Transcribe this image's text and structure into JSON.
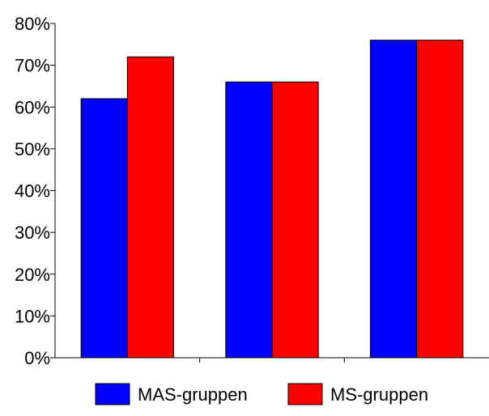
{
  "chart_data": {
    "type": "bar",
    "title": "",
    "xlabel": "",
    "ylabel": "",
    "categories": [
      "",
      "",
      ""
    ],
    "series": [
      {
        "name": "MAS-gruppen",
        "color": "#0000FF",
        "values": [
          62,
          66,
          76
        ]
      },
      {
        "name": "MS-gruppen",
        "color": "#FF0000",
        "values": [
          72,
          66,
          76
        ]
      }
    ],
    "ylim": [
      0,
      80
    ],
    "yticks": [
      0,
      10,
      20,
      30,
      40,
      50,
      60,
      70,
      80
    ],
    "ytick_labels": [
      "0%",
      "10%",
      "20%",
      "30%",
      "40%",
      "50%",
      "60%",
      "70%",
      "80%"
    ],
    "grid": false,
    "legend_position": "bottom"
  }
}
